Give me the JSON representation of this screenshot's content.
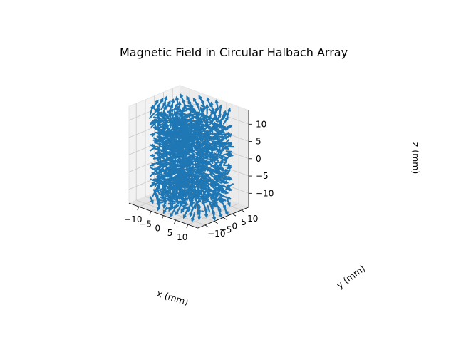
{
  "chart_data": {
    "type": "quiver3d",
    "title": "Magnetic Field in Circular Halbach Array",
    "xlabel": "x (mm)",
    "ylabel": "y (mm)",
    "zlabel": "z (mm)",
    "xlim": [
      -14,
      14
    ],
    "ylim": [
      -14,
      14
    ],
    "zlim": [
      -14,
      14
    ],
    "x_ticks": [
      "−10",
      "−5",
      "0",
      "5",
      "10"
    ],
    "y_ticks": [
      "−10",
      "−5",
      "0",
      "5",
      "10"
    ],
    "z_ticks": [
      "−10",
      "−5",
      "0",
      "5",
      "10"
    ],
    "x_tick_values": [
      -10,
      -5,
      0,
      5,
      10
    ],
    "y_tick_values": [
      -10,
      -5,
      0,
      5,
      10
    ],
    "z_tick_values": [
      -10,
      -5,
      0,
      5,
      10
    ],
    "grid": true,
    "arrow_color": "#1f77b4",
    "pane_colors": [
      "#f2f2f2",
      "#ebebeb",
      "#e3e3e3"
    ]
  }
}
